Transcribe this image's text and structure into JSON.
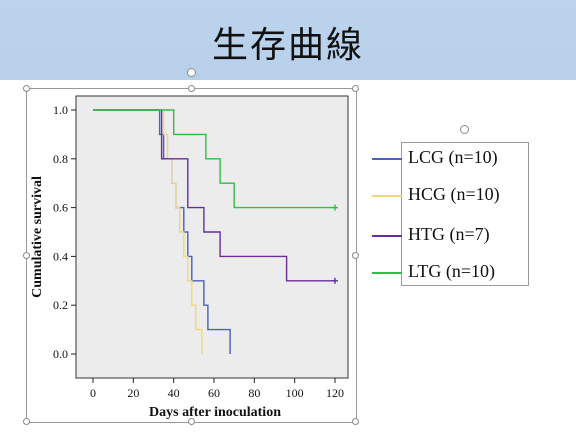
{
  "slide": {
    "title": "生存曲線"
  },
  "chart_data": {
    "type": "line",
    "step": true,
    "xlabel": "Days after inoculation",
    "ylabel": "Cumulative survival",
    "xlim": [
      0,
      120
    ],
    "ylim": [
      0.0,
      1.0
    ],
    "xticks": [
      0,
      20,
      40,
      60,
      80,
      100,
      120
    ],
    "yticks": [
      "0.0",
      "0.2",
      "0.4",
      "0.6",
      "0.8",
      "1.0"
    ],
    "background_color": "#ececec",
    "grid": false,
    "series": [
      {
        "name": "LCG (n=10)",
        "color": "#4d5fbf",
        "censored_end": false,
        "points": [
          [
            0,
            1.0
          ],
          [
            33,
            1.0
          ],
          [
            33,
            0.9
          ],
          [
            35,
            0.9
          ],
          [
            35,
            0.8
          ],
          [
            39,
            0.8
          ],
          [
            39,
            0.7
          ],
          [
            41,
            0.7
          ],
          [
            41,
            0.6
          ],
          [
            45,
            0.6
          ],
          [
            45,
            0.5
          ],
          [
            47,
            0.5
          ],
          [
            47,
            0.4
          ],
          [
            49,
            0.4
          ],
          [
            49,
            0.3
          ],
          [
            55,
            0.3
          ],
          [
            55,
            0.2
          ],
          [
            57,
            0.2
          ],
          [
            57,
            0.1
          ],
          [
            68,
            0.1
          ],
          [
            68,
            0.0
          ]
        ]
      },
      {
        "name": "HCG (n=10)",
        "color": "#efd87a",
        "censored_end": false,
        "points": [
          [
            0,
            1.0
          ],
          [
            35,
            1.0
          ],
          [
            35,
            0.9
          ],
          [
            37,
            0.9
          ],
          [
            37,
            0.8
          ],
          [
            39,
            0.8
          ],
          [
            39,
            0.7
          ],
          [
            41,
            0.7
          ],
          [
            41,
            0.6
          ],
          [
            43,
            0.6
          ],
          [
            43,
            0.5
          ],
          [
            45,
            0.5
          ],
          [
            45,
            0.4
          ],
          [
            47,
            0.4
          ],
          [
            47,
            0.3
          ],
          [
            49,
            0.3
          ],
          [
            49,
            0.2
          ],
          [
            51,
            0.2
          ],
          [
            51,
            0.1
          ],
          [
            54,
            0.1
          ],
          [
            54,
            0.0
          ]
        ]
      },
      {
        "name": "HTG (n=7)",
        "color": "#6a2d9c",
        "censored_end": true,
        "points": [
          [
            0,
            1.0
          ],
          [
            34,
            1.0
          ],
          [
            34,
            0.8
          ],
          [
            47,
            0.8
          ],
          [
            47,
            0.6
          ],
          [
            55,
            0.6
          ],
          [
            55,
            0.5
          ],
          [
            63,
            0.5
          ],
          [
            63,
            0.4
          ],
          [
            96,
            0.4
          ],
          [
            96,
            0.3
          ],
          [
            120,
            0.3
          ]
        ]
      },
      {
        "name": "LTG (n=10)",
        "color": "#2fbf45",
        "censored_end": true,
        "points": [
          [
            0,
            1.0
          ],
          [
            40,
            1.0
          ],
          [
            40,
            0.9
          ],
          [
            56,
            0.9
          ],
          [
            56,
            0.8
          ],
          [
            63,
            0.8
          ],
          [
            63,
            0.7
          ],
          [
            70,
            0.7
          ],
          [
            70,
            0.6
          ],
          [
            120,
            0.6
          ]
        ]
      }
    ]
  }
}
